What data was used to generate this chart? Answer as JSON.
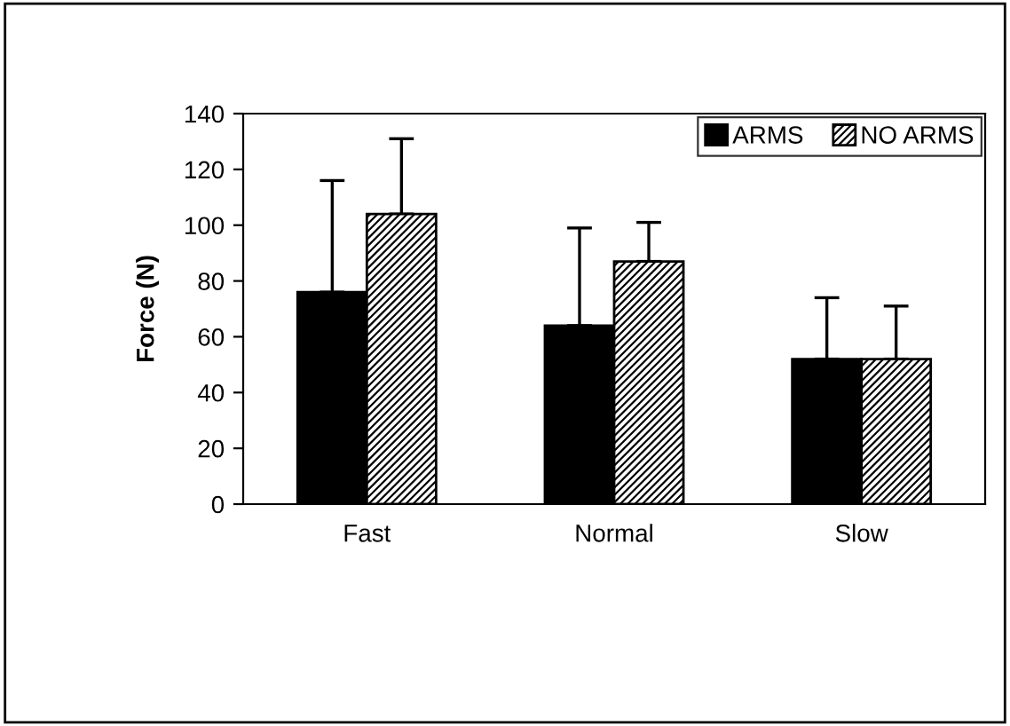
{
  "chart_data": {
    "type": "bar",
    "ylabel": "Force (N)",
    "categories": [
      "Fast",
      "Normal",
      "Slow"
    ],
    "series": [
      {
        "name": "ARMS",
        "color": "#000000",
        "values": [
          76,
          64,
          52
        ],
        "errors": [
          [
            76,
            116
          ],
          [
            64,
            99
          ],
          [
            52,
            74
          ]
        ]
      },
      {
        "name": "NO ARMS",
        "color": "#000000",
        "values": [
          104,
          87,
          52
        ],
        "errors": [
          [
            104,
            131
          ],
          [
            87,
            101
          ],
          [
            52,
            71
          ]
        ]
      }
    ],
    "ylim": [
      0,
      140
    ],
    "yticks": [
      0,
      20,
      40,
      60,
      80,
      100,
      120,
      140
    ],
    "grid": false,
    "legend": "top right"
  }
}
